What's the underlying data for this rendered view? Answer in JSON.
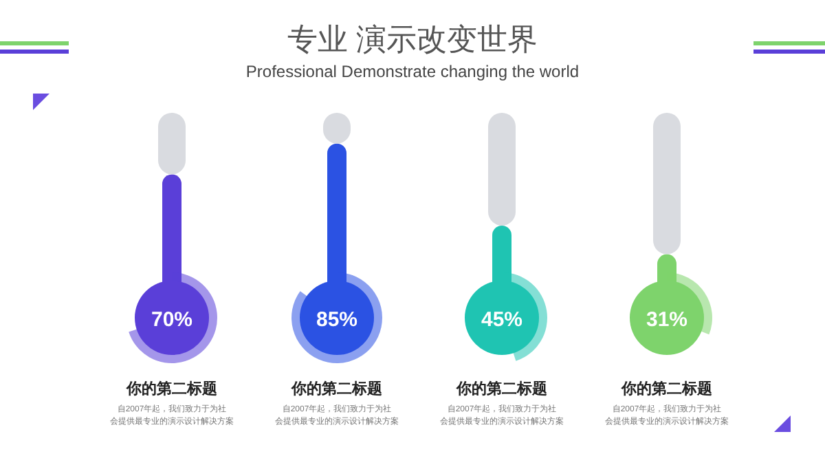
{
  "chart_data": {
    "type": "bar",
    "stacked": true,
    "title": "专业  演示改变世界",
    "subtitle": "Professional Demonstrate changing the world",
    "categories": [
      "你的第二标题",
      "你的第二标题",
      "你的第二标题",
      "你的第二标题"
    ],
    "series": [
      {
        "colors": [
          "#5a3fd8",
          "#2b52e3",
          "#1fc4b2",
          "#7ed36c"
        ],
        "values": [
          70,
          85,
          45,
          31
        ],
        "value_labels": [
          "70%",
          "85%",
          "45%",
          "31%"
        ]
      },
      {
        "color": "#d9dbe0",
        "values": [
          30,
          15,
          55,
          69
        ]
      }
    ],
    "ylim": [
      0,
      100
    ],
    "annotations": [
      "自2007年起，我们致力于为社会提供最专业的演示设计解决方案",
      "自2007年起，我们致力于为社会提供最专业的演示设计解决方案",
      "自2007年起，我们致力于为社会提供最专业的演示设计解决方案",
      "自2007年起，我们致力于为社会提供最专业的演示设计解决方案"
    ]
  }
}
